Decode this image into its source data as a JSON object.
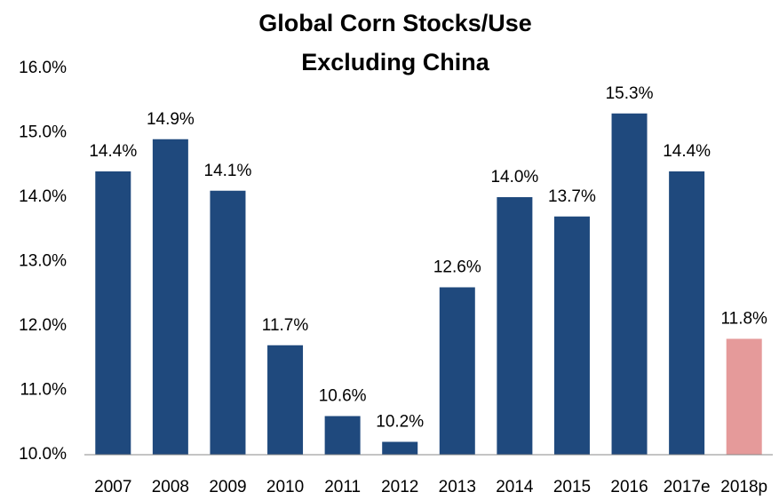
{
  "chart_data": {
    "type": "bar",
    "title": [
      "Global Corn Stocks/Use",
      "Excluding China"
    ],
    "categories": [
      "2007",
      "2008",
      "2009",
      "2010",
      "2011",
      "2012",
      "2013",
      "2014",
      "2015",
      "2016",
      "2017e",
      "2018p"
    ],
    "values": [
      14.4,
      14.9,
      14.1,
      11.7,
      10.6,
      10.2,
      12.6,
      14.0,
      13.7,
      15.3,
      14.4,
      11.8
    ],
    "value_labels": [
      "14.4%",
      "14.9%",
      "14.1%",
      "11.7%",
      "10.6%",
      "10.2%",
      "12.6%",
      "14.0%",
      "13.7%",
      "15.3%",
      "14.4%",
      "11.8%"
    ],
    "colors": [
      "#1f497d",
      "#1f497d",
      "#1f497d",
      "#1f497d",
      "#1f497d",
      "#1f497d",
      "#1f497d",
      "#1f497d",
      "#1f497d",
      "#1f497d",
      "#1f497d",
      "#e59a9a"
    ],
    "ylim": [
      10,
      16
    ],
    "yticks": [
      {
        "value": 10,
        "label": "10.0%"
      },
      {
        "value": 11,
        "label": "11.0%"
      },
      {
        "value": 12,
        "label": "12.0%"
      },
      {
        "value": 13,
        "label": "13.0%"
      },
      {
        "value": 14,
        "label": "14.0%"
      },
      {
        "value": 15,
        "label": "15.0%"
      },
      {
        "value": 16,
        "label": "16.0%"
      }
    ],
    "grid": false
  }
}
